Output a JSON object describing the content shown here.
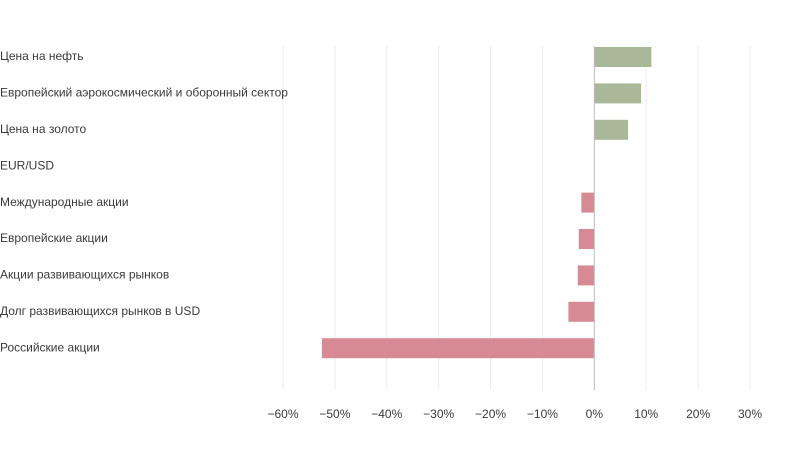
{
  "chart_data": {
    "type": "bar",
    "orientation": "horizontal",
    "title": "",
    "xlabel": "",
    "ylabel": "",
    "xlim": [
      -60,
      30
    ],
    "x_ticks": [
      -60,
      -50,
      -40,
      -30,
      -20,
      -10,
      0,
      10,
      20,
      30
    ],
    "x_tick_labels": [
      "−60%",
      "−50%",
      "−40%",
      "−30%",
      "−20%",
      "−10%",
      "0%",
      "10%",
      "20%",
      "30%"
    ],
    "grid": true,
    "legend": "none",
    "categories": [
      "Цена на нефть",
      "Европейский аэрокосмический и оборонный сектор",
      "Цена на золото",
      "EUR/USD",
      "Международные акции",
      "Европейские акции",
      "Акции развивающихся рынков",
      "Долг развивающихся рынков в USD",
      "Российские акции"
    ],
    "values": [
      11,
      9,
      6.5,
      0,
      -2.5,
      -3,
      -3.2,
      -5,
      -52.5
    ],
    "colors": {
      "positive": "#a9b899",
      "negative": "#d88a94"
    }
  }
}
